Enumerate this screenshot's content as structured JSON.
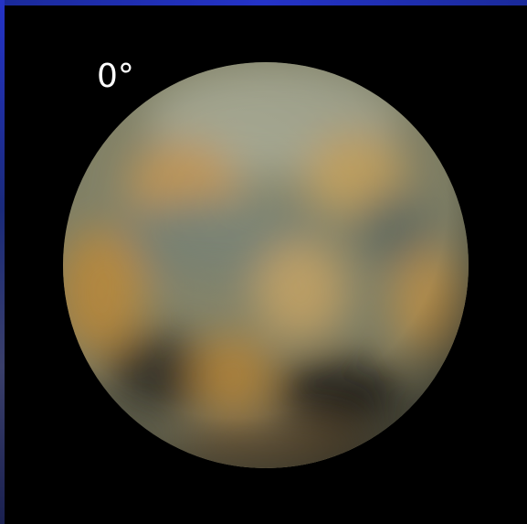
{
  "image": {
    "label": "0°"
  }
}
